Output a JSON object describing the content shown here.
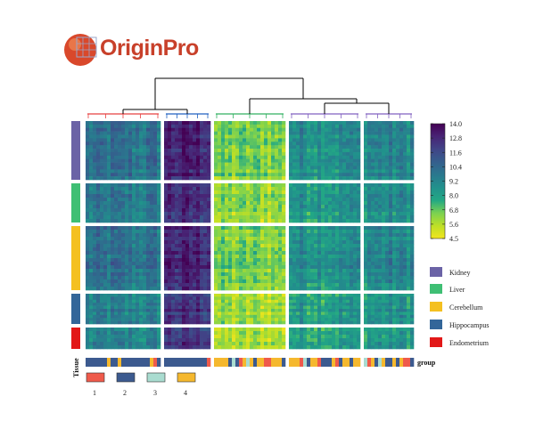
{
  "logo": {
    "name": "OriginPro",
    "icon": "origin-globe-icon",
    "color": "#c8402a"
  },
  "chart_data": {
    "type": "heatmap",
    "title": "",
    "colorbar": {
      "min": 4.5,
      "max": 14.0,
      "ticks": [
        "14.0",
        "12.8",
        "11.6",
        "10.4",
        "9.2",
        "8.0",
        "6.8",
        "5.6",
        "4.5"
      ],
      "colormap": [
        "#f2e51d",
        "#bddf26",
        "#7ad151",
        "#22a884",
        "#21918c",
        "#2a788e",
        "#355f8d",
        "#414487",
        "#482475",
        "#440154"
      ]
    },
    "row_groups": [
      {
        "name": "Kidney",
        "color": "#6b63a6",
        "rows": 17
      },
      {
        "name": "Liver",
        "color": "#3fbf74",
        "rows": 11
      },
      {
        "name": "Cerebellum",
        "color": "#f4c020",
        "rows": 18
      },
      {
        "name": "Hippocampus",
        "color": "#336699",
        "rows": 10
      },
      {
        "name": "Endometrium",
        "color": "#e21818",
        "rows": 6
      }
    ],
    "column_clusters": [
      {
        "id": "c1",
        "cols": 21,
        "mean": 9.6
      },
      {
        "id": "c2",
        "cols": 13,
        "mean": 12.6
      },
      {
        "id": "c3",
        "cols": 20,
        "mean": 6.2
      },
      {
        "id": "c4",
        "cols": 20,
        "mean": 8.6
      },
      {
        "id": "c5",
        "cols": 14,
        "mean": 8.9
      }
    ],
    "row_group_offsets": [
      0.3,
      0.0,
      0.3,
      -0.2,
      -0.4
    ],
    "group_annotation": {
      "row_label": "Tissue",
      "track_label": "group",
      "legend": [
        {
          "label": "1",
          "color": "#ef5a4b"
        },
        {
          "label": "2",
          "color": "#3c5a8f"
        },
        {
          "label": "3",
          "color": "#a9dcd0"
        },
        {
          "label": "4",
          "color": "#f5b82e"
        }
      ],
      "cluster_codes": [
        "2",
        "2",
        "4",
        "4",
        "3"
      ],
      "accent_codes": [
        "1",
        "4",
        "3",
        "2"
      ]
    },
    "dendrogram_branch_colors": [
      "#e84040",
      "#2060c0",
      "#30b060",
      "#8060c0",
      "#8060c0"
    ]
  }
}
